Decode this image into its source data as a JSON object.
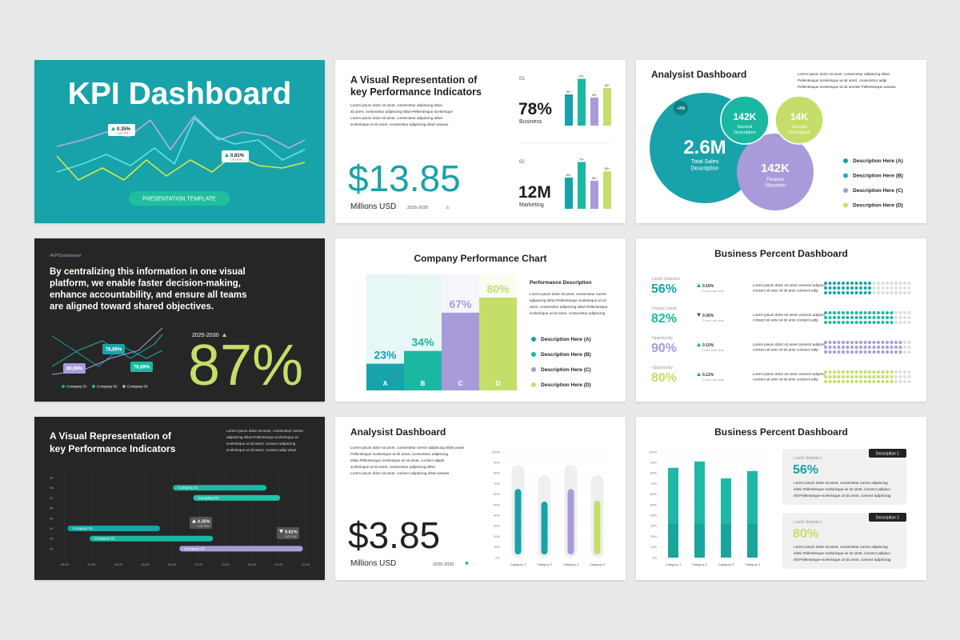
{
  "slides": [
    {
      "title": "KPI Dashboard",
      "badges": [
        {
          "value": "0.35%",
          "caption": "Last Year"
        },
        {
          "value": "0.81%",
          "caption": "Last Year"
        }
      ],
      "button": "PRESENTATION TEMPLATE"
    },
    {
      "title": [
        "A Visual Representation of",
        "key Performance Indicators"
      ],
      "body": [
        "Lorem ipsum dolor sit amet, consectetur adipiscing elitwi",
        "sit amet, consectetur adipiscing elitwi Pellentesque scelerisque",
        "Lorem ipsum dolor sit amet, consectetur adipiscing elitwi",
        "scelerisque wi sit amet, consectetur adipiscing eliwe wowow"
      ],
      "amount": "$13.85",
      "amount_caption": "Millions USD",
      "period": "2025-2030",
      "colors": [
        "#17a3a9",
        "#1bb8a1",
        "#a99bd9",
        "#c3df6a"
      ],
      "kpis": [
        {
          "index": "01",
          "value": "78%",
          "label": "Business",
          "bars": {
            "type": "bar",
            "values": [
              50,
              75,
              45,
              60
            ],
            "value_labels": [
              "50+",
              "75+",
              "45+",
              "60+"
            ],
            "ylim": [
              0,
              100
            ]
          }
        },
        {
          "index": "02",
          "value": "12M",
          "label": "Marketing",
          "bars": {
            "type": "bar",
            "values": [
              50,
              75,
              45,
              60
            ],
            "value_labels": [
              "50+",
              "75+",
              "45+",
              "60+"
            ],
            "ylim": [
              0,
              100
            ]
          }
        }
      ]
    },
    {
      "title": "Analysist Dashboard",
      "body": [
        "Lorem ipsum dolor sit amet, consectetur adipiscing elitwi",
        "Pellentesque scelerisque wi sit amet, consectetur adipi",
        "Pellentesque scelerisque wi sit ametwi Pellentesque wowow"
      ],
      "badge": "+2%",
      "bubbles": [
        {
          "value": "2.6M",
          "label": [
            "Total Sales",
            "Description"
          ]
        },
        {
          "value": "142K",
          "label": [
            "Second",
            "Description"
          ]
        },
        {
          "value": "14K",
          "label": [
            "Second",
            "Description"
          ]
        },
        {
          "value": "142K",
          "label": [
            "Finance",
            "Allocation"
          ]
        }
      ],
      "legend": [
        "Description Here (A)",
        "Description Here (B)",
        "Description Here (C)",
        "Description Here (D)"
      ],
      "colors": [
        "#17a3a9",
        "#1bb8a1",
        "#a99bd9",
        "#c3df6a"
      ]
    },
    {
      "hashtag": "#KPIDashboard",
      "statement": [
        "By centralizing this information in one visual",
        "platform, we enable faster decision-making,",
        "enhance accountability, and ensure all teams",
        "are aligned toward shared objectives."
      ],
      "callouts": [
        "78,89%",
        "89,89%",
        "78,89%"
      ],
      "legend": [
        "Company 01",
        "Company 02",
        "Company 03"
      ],
      "period": "2025-2030",
      "value": "87%"
    },
    {
      "title": "Company Performance Chart",
      "chart": {
        "type": "bar",
        "categories": [
          "A",
          "B",
          "C",
          "D"
        ],
        "values": [
          23,
          34,
          67,
          80
        ],
        "value_labels": [
          "23%",
          "34%",
          "67%",
          "80%"
        ],
        "colors": [
          "#17a3a9",
          "#1bb8a1",
          "#a99bd9",
          "#c3df6a"
        ],
        "ylim": [
          0,
          100
        ]
      },
      "description_title": "Performance Description",
      "body": [
        "Lorem ipsum dolor sit amet, consectetur roerse",
        "adipiscing elitwi Pellentesque scelerisque wi sit",
        "amet, consectetur adipiscing elitwi Pellentesque",
        "scelerisque wi sit amet, consectetur adipiscing"
      ],
      "legend": [
        "Description Here (A)",
        "Description Here (B)",
        "Description Here (C)",
        "Description Here (D)"
      ]
    },
    {
      "title": "Business Percent Dashboard",
      "rows": [
        {
          "label": "Leads Statistics",
          "value": 56,
          "value_label": "56%",
          "change": "0.16%",
          "direction": "up",
          "change_caption": "From Last Year",
          "color": "#17a3a9",
          "body": [
            "Lorem ipsum dolor sit amet consecti adipisci",
            "consect sit ame wi sit ame consecti adip"
          ]
        },
        {
          "label": "Unique Leads",
          "value": 82,
          "value_label": "82%",
          "change": "0.06%",
          "direction": "down",
          "change_caption": "From Last Year",
          "color": "#1bb8a1",
          "body": [
            "Lorem ipsum dolor sit amet consecti adipisci",
            "consect sit ame wi sit ame consecti adip"
          ]
        },
        {
          "label": "Opportunity",
          "value": 90,
          "value_label": "90%",
          "change": "0.10%",
          "direction": "up",
          "change_caption": "From Last Year",
          "color": "#a99bd9",
          "body": [
            "Lorem ipsum dolor sit amet consecti adipisci",
            "consect sit ame wi sit ame consecti adip"
          ]
        },
        {
          "label": "Opportunity",
          "value": 80,
          "value_label": "80%",
          "change": "0.12%",
          "direction": "up",
          "change_caption": "From Last Year",
          "color": "#c3df6a",
          "body": [
            "Lorem ipsum dolor sit amet consecti adipisci",
            "consect sit ame wi sit ame consecti adip"
          ]
        }
      ]
    },
    {
      "title": [
        "A Visual Representation of",
        "key Performance Indicators"
      ],
      "body": [
        "Lorem ipsum dolor sit amet, consectetur roerse",
        "adipiscing elitwi Pellentesque scelerisque wi",
        "scelerisque wi sit amet, consect adipiscing",
        "scelerisque wi sit amet, consect adipi eliwe"
      ],
      "chart": {
        "type": "gantt",
        "rows": [
          "09",
          "08",
          "07",
          "06",
          "05",
          "04",
          "03",
          "02"
        ],
        "xticks": [
          "09.00",
          "12.00",
          "15.00",
          "18.00",
          "20.00",
          "22.00",
          "23.00",
          "24.00",
          "01.00",
          "02.00"
        ],
        "xlim": [
          0,
          9
        ],
        "bars": [
          {
            "name": "Company 01",
            "row": "08",
            "start": 4.04,
            "end": 7.54,
            "color": "#1bb8a1"
          },
          {
            "name": "Company 02",
            "row": "07",
            "start": 4.8,
            "end": 8.05,
            "color": "#1fc4aa"
          },
          {
            "name": "Company 01",
            "row": "04",
            "start": 0.1,
            "end": 3.56,
            "color": "#17a3a9"
          },
          {
            "name": "Company 02",
            "row": "03",
            "start": 0.93,
            "end": 5.54,
            "color": "#1bb8a1"
          },
          {
            "name": "Company 03",
            "row": "02",
            "start": 4.28,
            "end": 8.9,
            "color": "#a99bd9"
          }
        ]
      },
      "badges": [
        {
          "value": "0.35%",
          "caption": "Last Year"
        },
        {
          "value": "0.81%",
          "caption": "Last Year"
        }
      ]
    },
    {
      "title": "Analysist Dashboard",
      "body": [
        "Lorem ipsum dolor sit amet, consectetur roerse adipiscing elitwi wowe",
        "Pellentesque scelerisque wi sit amet, consectetur adipiscing",
        "elitwi Pellentesque scelerisque wi sit amet, consect adipis",
        "scelerisque wi sit amet, consectetur adipiscing elitwi",
        "Lorem ipsum dolor sit amet, consect adipiscing elitwi wowew"
      ],
      "amount": "$3.85",
      "amount_caption": "Millions USD",
      "period": "2025-2030",
      "chart": {
        "type": "bar",
        "categories": [
          "Category 1",
          "Category 2",
          "Category 3",
          "Category 4"
        ],
        "values": [
          65,
          53,
          65,
          54
        ],
        "colors": [
          "#17a3a9",
          "#17a3a9",
          "#a99bd9",
          "#c3df6a"
        ],
        "ylim": [
          0,
          100
        ],
        "yticks": [
          {
            "value": 0,
            "label": "0%"
          },
          {
            "value": 10,
            "label": "10%"
          },
          {
            "value": 20,
            "label": "20%"
          },
          {
            "value": 30,
            "label": "30%"
          },
          {
            "value": 40,
            "label": "40%"
          },
          {
            "value": 50,
            "label": "50%"
          },
          {
            "value": 60,
            "label": "60%"
          },
          {
            "value": 70,
            "label": "70%"
          },
          {
            "value": 80,
            "label": "80%"
          },
          {
            "value": 90,
            "label": "90%"
          },
          {
            "value": 100,
            "label": "100%"
          }
        ]
      }
    },
    {
      "title": "Business Percent Dashboard",
      "chart": {
        "type": "bar",
        "categories": [
          "Category 1",
          "Category 2",
          "Category 3",
          "Category 4"
        ],
        "values": [
          85,
          91,
          75,
          82
        ],
        "color": "#1fb8a6",
        "ylim": [
          0,
          100
        ],
        "yticks": [
          {
            "value": 0,
            "label": "0%"
          },
          {
            "value": 10,
            "label": "10%"
          },
          {
            "value": 20,
            "label": "20%"
          },
          {
            "value": 30,
            "label": "30%"
          },
          {
            "value": 40,
            "label": "40%"
          },
          {
            "value": 50,
            "label": "50%"
          },
          {
            "value": 60,
            "label": "60%"
          },
          {
            "value": 70,
            "label": "70%"
          },
          {
            "value": 80,
            "label": "80%"
          },
          {
            "value": 90,
            "label": "90%"
          },
          {
            "value": 100,
            "label": "100%"
          }
        ]
      },
      "cards": [
        {
          "tag": "Description 1",
          "label": "Leads Statistics",
          "value": "56%",
          "color": "#17a3a9",
          "body": [
            "Lorem ipsum dolor sit amet, consectetur roerse adipiscing",
            "elitwi Pellentesque scelerisque wi sit amet, consect adipisci",
            "elit Pellentesque scelerisque wi sit amet, consect adipiscing"
          ]
        },
        {
          "tag": "Description 2",
          "label": "Leads Statistics",
          "value": "80%",
          "color": "#c3df6a",
          "body": [
            "Lorem ipsum dolor sit amet, consectetur roerse adipiscing",
            "elitwi Pellentesque scelerisque wi sit amet, consect adipisci",
            "elit Pellentesque scelerisque wi sit amet, consect adipiscing"
          ]
        }
      ]
    }
  ]
}
